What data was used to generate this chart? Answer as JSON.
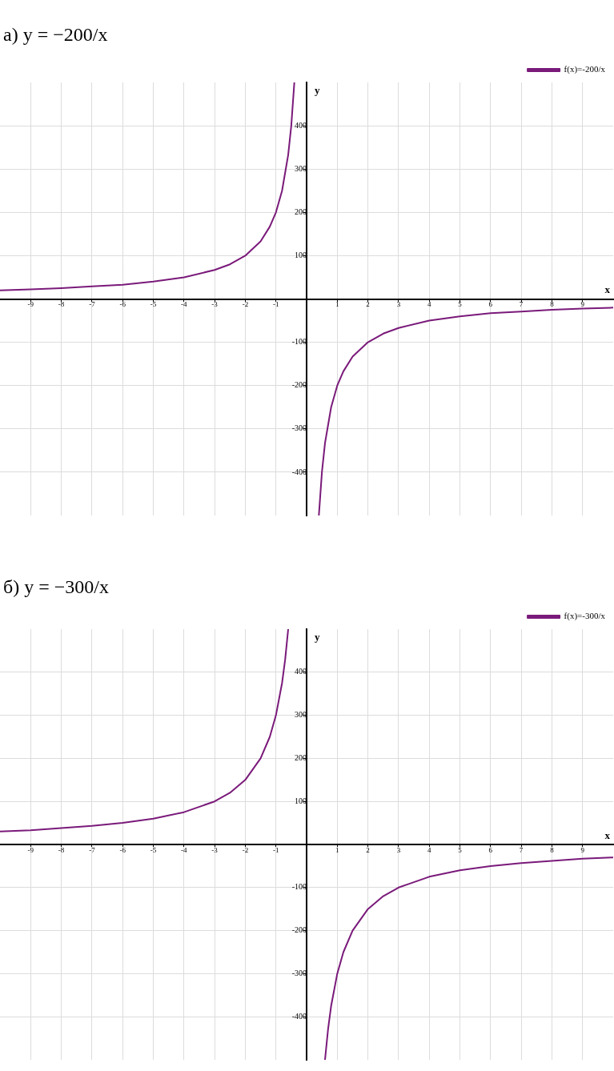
{
  "chart_data": [
    {
      "type": "line",
      "title": "а) y = −200/x",
      "xlabel": "x",
      "ylabel": "y",
      "x": [
        -10,
        -9,
        -8,
        -7,
        -6,
        -5,
        -4,
        -3,
        -2.5,
        -2,
        -1.5,
        -1.2,
        -1,
        -0.8,
        -0.6,
        -0.5,
        -0.4,
        0,
        0.4,
        0.5,
        0.6,
        0.8,
        1,
        1.2,
        1.5,
        2,
        2.5,
        3,
        4,
        5,
        6,
        7,
        8,
        9,
        10
      ],
      "series": [
        {
          "name": "f(x)=-200/x",
          "color": "#7a1a7a",
          "values": [
            20,
            22,
            25,
            29,
            33,
            40,
            50,
            67,
            80,
            100,
            133,
            167,
            200,
            250,
            333,
            400,
            500,
            null,
            -500,
            -400,
            -333,
            -250,
            -200,
            -167,
            -133,
            -100,
            -80,
            -67,
            -50,
            -40,
            -33,
            -29,
            -25,
            -22,
            -20
          ]
        }
      ],
      "xlim": [
        -10,
        10
      ],
      "ylim": [
        -500,
        500
      ],
      "xticks": [
        -9,
        -8,
        -7,
        -6,
        -5,
        -4,
        -3,
        -2,
        -1,
        1,
        2,
        3,
        4,
        5,
        6,
        7,
        8,
        9
      ],
      "yticks": [
        -400,
        -300,
        -200,
        -100,
        100,
        200,
        300,
        400
      ],
      "grid": true,
      "legend": "top right",
      "marker": "none",
      "line_style": "solid"
    },
    {
      "type": "line",
      "title": "б) y = −300/x",
      "xlabel": "x",
      "ylabel": "y",
      "x": [
        -10,
        -9,
        -8,
        -7,
        -6,
        -5,
        -4,
        -3,
        -2.5,
        -2,
        -1.5,
        -1.2,
        -1,
        -0.8,
        -0.7,
        -0.6,
        0,
        0.6,
        0.7,
        0.8,
        1,
        1.2,
        1.5,
        2,
        2.5,
        3,
        4,
        5,
        6,
        7,
        8,
        9,
        10
      ],
      "series": [
        {
          "name": "f(x)=-300/x",
          "color": "#7a1a7a",
          "values": [
            30,
            33,
            38,
            43,
            50,
            60,
            75,
            100,
            120,
            150,
            200,
            250,
            300,
            375,
            429,
            500,
            null,
            -500,
            -429,
            -375,
            -300,
            -250,
            -200,
            -150,
            -120,
            -100,
            -75,
            -60,
            -50,
            -43,
            -38,
            -33,
            -30
          ]
        }
      ],
      "xlim": [
        -10,
        10
      ],
      "ylim": [
        -500,
        500
      ],
      "xticks": [
        -9,
        -8,
        -7,
        -6,
        -5,
        -4,
        -3,
        -2,
        -1,
        1,
        2,
        3,
        4,
        5,
        6,
        7,
        8,
        9
      ],
      "yticks": [
        -400,
        -300,
        -200,
        -100,
        100,
        200,
        300,
        400
      ],
      "grid": true,
      "legend": "top right",
      "marker": "none",
      "line_style": "solid"
    }
  ]
}
